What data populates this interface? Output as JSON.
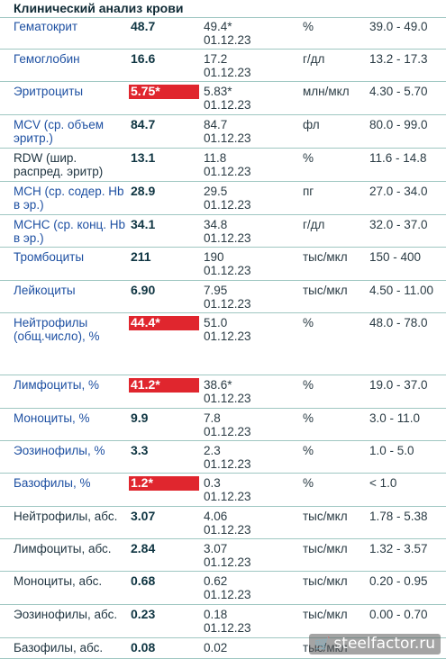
{
  "title": "Клинический анализ крови",
  "watermark": "steelfactor.ru",
  "colors": {
    "flag": "#e0262e",
    "name_highlight": "#1e50a2",
    "border": "#9fc7c2"
  },
  "rows": [
    {
      "name": "Гематокрит",
      "value": "48.7",
      "flag": false,
      "prev": "49.4*",
      "date": "01.12.23",
      "unit": "%",
      "range": "39.0 - 49.0",
      "hl": true
    },
    {
      "name": "Гемоглобин",
      "value": "16.6",
      "flag": false,
      "prev": "17.2",
      "date": "01.12.23",
      "unit": "г/дл",
      "range": "13.2 - 17.3",
      "hl": true
    },
    {
      "name": "Эритроциты",
      "value": "5.75*",
      "flag": true,
      "prev": "5.83*",
      "date": "01.12.23",
      "unit": "млн/мкл",
      "range": "4.30 - 5.70",
      "hl": true
    },
    {
      "name": "MCV (ср. объем эритр.)",
      "value": "84.7",
      "flag": false,
      "prev": "84.7",
      "date": "01.12.23",
      "unit": "фл",
      "range": "80.0 - 99.0",
      "hl": true
    },
    {
      "name": "RDW (шир. распред. эритр)",
      "value": "13.1",
      "flag": false,
      "prev": "11.8",
      "date": "01.12.23",
      "unit": "%",
      "range": "11.6 - 14.8",
      "hl": false
    },
    {
      "name": "MCH (ср. содер. Hb в эр.)",
      "value": "28.9",
      "flag": false,
      "prev": "29.5",
      "date": "01.12.23",
      "unit": "пг",
      "range": "27.0 - 34.0",
      "hl": true
    },
    {
      "name": "MCHC (ср. конц. Hb в эр.)",
      "value": "34.1",
      "flag": false,
      "prev": "34.8",
      "date": "01.12.23",
      "unit": "г/дл",
      "range": "32.0 - 37.0",
      "hl": true
    },
    {
      "name": "Тромбоциты",
      "value": "211",
      "flag": false,
      "prev": "190",
      "date": "01.12.23",
      "unit": "тыс/мкл",
      "range": "150 - 400",
      "hl": true
    },
    {
      "name": "Лейкоциты",
      "value": "6.90",
      "flag": false,
      "prev": "7.95",
      "date": "01.12.23",
      "unit": "тыс/мкл",
      "range": "4.50 - 11.00",
      "hl": true
    },
    {
      "name": "Нейтрофилы (общ.число), %",
      "value": "44.4*",
      "flag": true,
      "prev": "51.0",
      "date": "01.12.23",
      "unit": "%",
      "range": "48.0 - 78.0",
      "hl": true
    },
    {
      "name": "Лимфоциты, %",
      "value": "41.2*",
      "flag": true,
      "prev": "38.6*",
      "date": "01.12.23",
      "unit": "%",
      "range": "19.0 - 37.0",
      "hl": true
    },
    {
      "name": "Моноциты, %",
      "value": "9.9",
      "flag": false,
      "prev": "7.8",
      "date": "01.12.23",
      "unit": "%",
      "range": "3.0 - 11.0",
      "hl": true
    },
    {
      "name": "Эозинофилы, %",
      "value": "3.3",
      "flag": false,
      "prev": "2.3",
      "date": "01.12.23",
      "unit": "%",
      "range": "1.0 - 5.0",
      "hl": true
    },
    {
      "name": "Базофилы, %",
      "value": "1.2*",
      "flag": true,
      "prev": "0.3",
      "date": "01.12.23",
      "unit": "%",
      "range": "< 1.0",
      "hl": true
    },
    {
      "name": "Нейтрофилы, абс.",
      "value": "3.07",
      "flag": false,
      "prev": "4.06",
      "date": "01.12.23",
      "unit": "тыс/мкл",
      "range": "1.78 - 5.38",
      "hl": false
    },
    {
      "name": "Лимфоциты, абс.",
      "value": "2.84",
      "flag": false,
      "prev": "3.07",
      "date": "01.12.23",
      "unit": "тыс/мкл",
      "range": "1.32 - 3.57",
      "hl": false
    },
    {
      "name": "Моноциты, абс.",
      "value": "0.68",
      "flag": false,
      "prev": "0.62",
      "date": "01.12.23",
      "unit": "тыс/мкл",
      "range": "0.20 - 0.95",
      "hl": false
    },
    {
      "name": "Эозинофилы, абс.",
      "value": "0.23",
      "flag": false,
      "prev": "0.18",
      "date": "01.12.23",
      "unit": "тыс/мкл",
      "range": "0.00 - 0.70",
      "hl": false
    },
    {
      "name": "Базофилы, абс.",
      "value": "0.08",
      "flag": false,
      "prev": "0.02",
      "date": "",
      "unit": "тыс/мкл",
      "range": "",
      "hl": false
    }
  ]
}
